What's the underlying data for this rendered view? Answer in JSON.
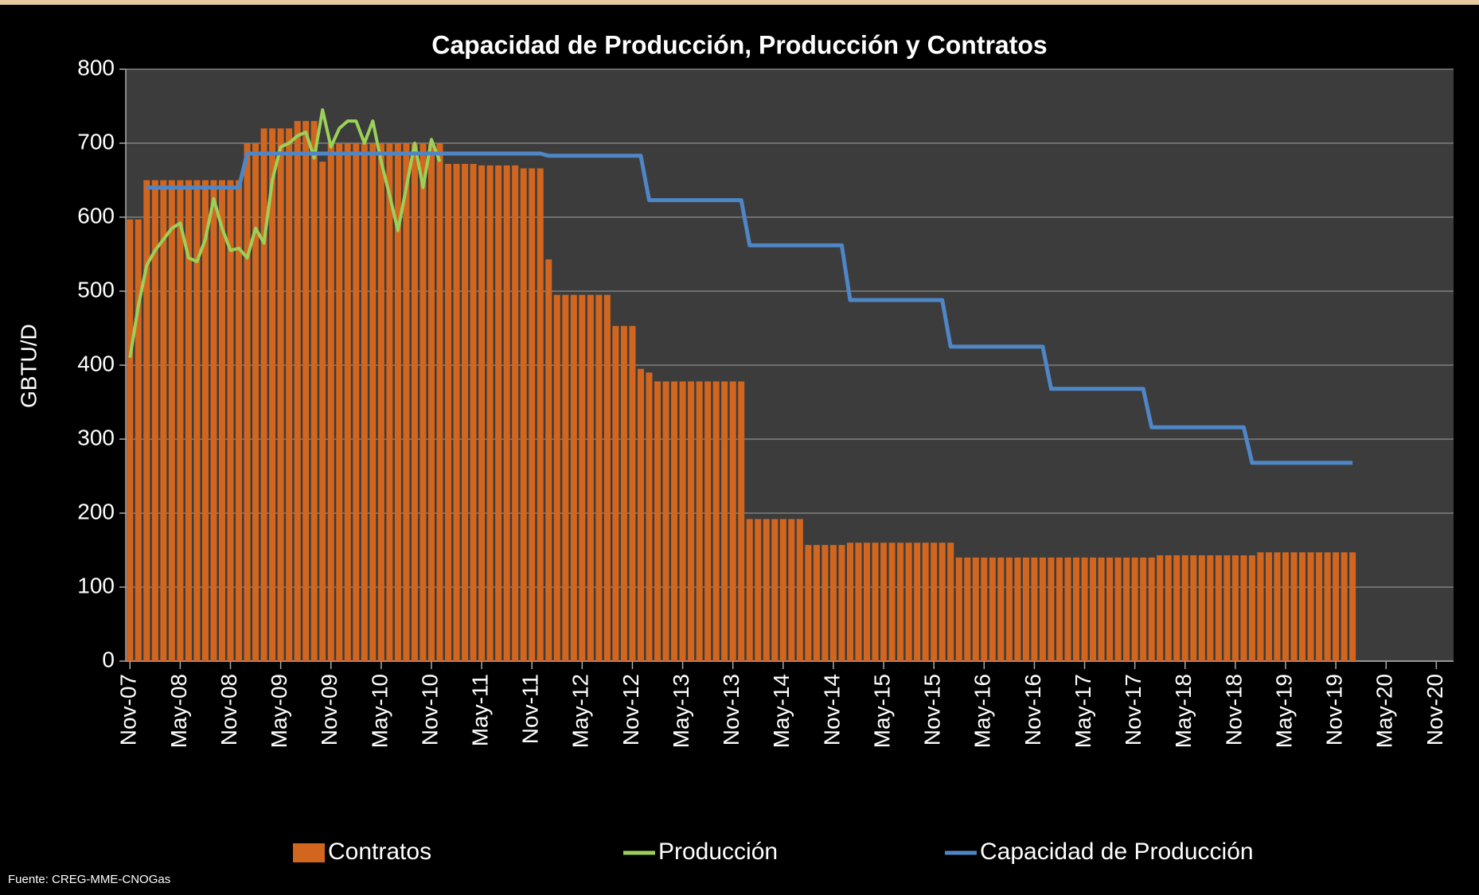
{
  "chart_data": {
    "type": "bar-line",
    "title": "Capacidad de Producción, Producción y Contratos",
    "y_label": "GBTU/D",
    "source": "Fuente: CREG-MME-CNOGas",
    "categories": [
      "Nov-07",
      null,
      null,
      null,
      null,
      null,
      "May-08",
      null,
      null,
      null,
      null,
      null,
      "Nov-08",
      null,
      null,
      null,
      null,
      null,
      "May-09",
      null,
      null,
      null,
      null,
      null,
      "Nov-09",
      null,
      null,
      null,
      null,
      null,
      "May-10",
      null,
      null,
      null,
      null,
      null,
      "Nov-10",
      null,
      null,
      null,
      null,
      null,
      "May-11",
      null,
      null,
      null,
      null,
      null,
      "Nov-11",
      null,
      null,
      null,
      null,
      null,
      "May-12",
      null,
      null,
      null,
      null,
      null,
      "Nov-12",
      null,
      null,
      null,
      null,
      null,
      "May-13",
      null,
      null,
      null,
      null,
      null,
      "Nov-13",
      null,
      null,
      null,
      null,
      null,
      "May-14",
      null,
      null,
      null,
      null,
      null,
      "Nov-14",
      null,
      null,
      null,
      null,
      null,
      "May-15",
      null,
      null,
      null,
      null,
      null,
      "Nov-15",
      null,
      null,
      null,
      null,
      null,
      "May-16",
      null,
      null,
      null,
      null,
      null,
      "Nov-16",
      null,
      null,
      null,
      null,
      null,
      "May-17",
      null,
      null,
      null,
      null,
      null,
      "Nov-17",
      null,
      null,
      null,
      null,
      null,
      "May-18",
      null,
      null,
      null,
      null,
      null,
      "Nov-18",
      null,
      null,
      null,
      null,
      null,
      "May-19",
      null,
      null,
      null,
      null,
      null,
      "Nov-19",
      null,
      null,
      null,
      null,
      null,
      "May-20",
      null,
      null,
      null,
      null,
      null,
      "Nov-20"
    ],
    "series": [
      {
        "name": "Contratos",
        "kind": "bar",
        "color": "#d2661f",
        "values": [
          597,
          597,
          650,
          650,
          650,
          650,
          650,
          650,
          650,
          650,
          650,
          650,
          650,
          650,
          700,
          700,
          720,
          720,
          720,
          720,
          730,
          730,
          730,
          675,
          700,
          700,
          700,
          700,
          700,
          700,
          700,
          700,
          700,
          700,
          700,
          700,
          700,
          700,
          672,
          672,
          672,
          672,
          670,
          670,
          670,
          670,
          670,
          666,
          666,
          666,
          543,
          495,
          495,
          495,
          495,
          495,
          495,
          495,
          453,
          453,
          453,
          395,
          390,
          378,
          378,
          378,
          378,
          378,
          378,
          378,
          378,
          378,
          378,
          378,
          192,
          192,
          192,
          192,
          192,
          192,
          192,
          157,
          157,
          157,
          157,
          157,
          160,
          160,
          160,
          160,
          160,
          160,
          160,
          160,
          160,
          160,
          160,
          160,
          160,
          140,
          140,
          140,
          140,
          140,
          140,
          140,
          140,
          140,
          140,
          140,
          140,
          140,
          140,
          140,
          140,
          140,
          140,
          140,
          140,
          140,
          140,
          140,
          140,
          143,
          143,
          143,
          143,
          143,
          143,
          143,
          143,
          143,
          143,
          143,
          143,
          147,
          147,
          147,
          147,
          147,
          147,
          147,
          147,
          147,
          147,
          147,
          147,
          null,
          null,
          null,
          null,
          null,
          null,
          null,
          null,
          null,
          null
        ]
      },
      {
        "name": "Producción",
        "kind": "line",
        "color": "#9bd158",
        "values": [
          410,
          480,
          535,
          555,
          570,
          585,
          592,
          545,
          540,
          570,
          625,
          585,
          555,
          558,
          545,
          585,
          565,
          650,
          695,
          700,
          710,
          715,
          680,
          745,
          695,
          720,
          730,
          730,
          700,
          730,
          675,
          630,
          582,
          640,
          700,
          640,
          705,
          675,
          null,
          null,
          null,
          null,
          null,
          null,
          null,
          null,
          null,
          null,
          null,
          null,
          null,
          null,
          null,
          null,
          null,
          null,
          null,
          null,
          null,
          null,
          null,
          null,
          null,
          null,
          null,
          null,
          null,
          null,
          null,
          null,
          null,
          null,
          null,
          null,
          null,
          null,
          null,
          null,
          null,
          null,
          null,
          null,
          null,
          null,
          null,
          null,
          null,
          null,
          null,
          null,
          null,
          null,
          null,
          null,
          null,
          null,
          null,
          null,
          null,
          null,
          null,
          null,
          null,
          null,
          null,
          null,
          null,
          null,
          null,
          null,
          null,
          null,
          null,
          null,
          null,
          null,
          null,
          null,
          null,
          null,
          null,
          null,
          null,
          null,
          null,
          null,
          null,
          null,
          null,
          null,
          null,
          null,
          null,
          null,
          null,
          null,
          null,
          null,
          null,
          null,
          null,
          null,
          null,
          null,
          null,
          null,
          null,
          null,
          null,
          null,
          null,
          null,
          null,
          null,
          null,
          null,
          null
        ]
      },
      {
        "name": "Capacidad de Producción",
        "kind": "line",
        "color": "#4f86c6",
        "values": [
          null,
          null,
          640,
          640,
          640,
          640,
          640,
          640,
          640,
          640,
          640,
          640,
          640,
          640,
          686,
          686,
          686,
          686,
          686,
          686,
          686,
          686,
          686,
          686,
          686,
          686,
          686,
          686,
          686,
          686,
          686,
          686,
          686,
          686,
          686,
          686,
          686,
          686,
          686,
          686,
          686,
          686,
          686,
          686,
          686,
          686,
          686,
          686,
          686,
          686,
          683,
          683,
          683,
          683,
          683,
          683,
          683,
          683,
          683,
          683,
          683,
          683,
          623,
          623,
          623,
          623,
          623,
          623,
          623,
          623,
          623,
          623,
          623,
          623,
          562,
          562,
          562,
          562,
          562,
          562,
          562,
          562,
          562,
          562,
          562,
          562,
          488,
          488,
          488,
          488,
          488,
          488,
          488,
          488,
          488,
          488,
          488,
          488,
          425,
          425,
          425,
          425,
          425,
          425,
          425,
          425,
          425,
          425,
          425,
          425,
          368,
          368,
          368,
          368,
          368,
          368,
          368,
          368,
          368,
          368,
          368,
          368,
          316,
          316,
          316,
          316,
          316,
          316,
          316,
          316,
          316,
          316,
          316,
          316,
          268,
          268,
          268,
          268,
          268,
          268,
          268,
          268,
          268,
          268,
          268,
          268,
          268,
          null,
          null,
          null,
          null,
          null,
          null,
          null,
          null,
          null,
          null
        ]
      }
    ],
    "ylim": [
      0,
      800
    ],
    "yticks": [
      0,
      100,
      200,
      300,
      400,
      500,
      600,
      700,
      800
    ],
    "grid": true
  }
}
